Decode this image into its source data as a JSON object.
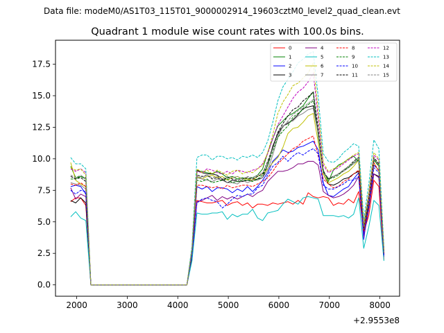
{
  "chart_data": {
    "type": "line",
    "suptitle": "Data file: modeM0/AS1T03_115T01_9000002914_19603cztM0_level2_quad_clean.evt",
    "title": "Quadrant 1 module wise count rates with 100.0s bins.",
    "offset_label": "+2.9553e8",
    "xlabel": "",
    "ylabel": "",
    "xlim": [
      1580,
      8390
    ],
    "ylim": [
      -0.9,
      19.4
    ],
    "xticks": [
      2000,
      3000,
      4000,
      5000,
      6000,
      7000,
      8000
    ],
    "xtick_labels": [
      "2000",
      "3000",
      "4000",
      "5000",
      "6000",
      "7000",
      "8000"
    ],
    "yticks": [
      0,
      2.5,
      5,
      7.5,
      10,
      12.5,
      15,
      17.5
    ],
    "ytick_labels": [
      "0.0",
      "2.5",
      "5.0",
      "7.5",
      "10.0",
      "12.5",
      "15.0",
      "17.5"
    ],
    "legend_position": "top-right",
    "x": [
      1880,
      1980,
      2080,
      2180,
      2280,
      4180,
      4280,
      4380,
      4480,
      4580,
      4680,
      4780,
      4880,
      4980,
      5080,
      5180,
      5280,
      5380,
      5480,
      5580,
      5680,
      5780,
      5880,
      5980,
      6080,
      6180,
      6280,
      6380,
      6480,
      6580,
      6680,
      6780,
      6880,
      6980,
      7080,
      7180,
      7280,
      7380,
      7480,
      7580,
      7680,
      7780,
      7880,
      7980,
      8080
    ],
    "series": [
      {
        "name": "0",
        "color": "#ff0000",
        "dash": "solid",
        "values": [
          6.6,
          6.9,
          6.9,
          6.3,
          0,
          0,
          2.0,
          6.7,
          6.6,
          6.5,
          6.5,
          6.6,
          6.7,
          6.3,
          6.5,
          6.6,
          6.3,
          6.5,
          6.1,
          6.4,
          6.4,
          6.3,
          6.5,
          6.4,
          6.5,
          6.6,
          6.4,
          6.7,
          6.4,
          7.3,
          7.0,
          6.9,
          7.0,
          6.9,
          6.3,
          6.5,
          6.4,
          6.8,
          6.5,
          7.4,
          4.2,
          5.5,
          8.3,
          7.8,
          2.0
        ]
      },
      {
        "name": "1",
        "color": "#008000",
        "dash": "solid",
        "values": [
          9.4,
          8.5,
          8.6,
          8.4,
          0,
          0,
          2.8,
          9.0,
          9.0,
          8.9,
          8.8,
          9.0,
          8.8,
          8.5,
          8.6,
          8.4,
          8.5,
          8.4,
          8.5,
          8.7,
          9.2,
          10.5,
          11.6,
          12.6,
          13.0,
          13.4,
          13.6,
          13.9,
          14.2,
          14.8,
          15.3,
          11.8,
          9.1,
          8.2,
          9.1,
          9.5,
          9.7,
          10.0,
          10.2,
          9.8,
          4.5,
          6.7,
          10.0,
          9.5,
          2.5
        ]
      },
      {
        "name": "2",
        "color": "#0000ff",
        "dash": "solid",
        "values": [
          7.8,
          7.9,
          7.8,
          7.2,
          0,
          0,
          2.4,
          7.8,
          7.6,
          7.8,
          7.4,
          7.7,
          7.7,
          7.6,
          7.3,
          7.6,
          7.4,
          7.8,
          7.4,
          7.8,
          8.3,
          8.9,
          9.8,
          10.2,
          10.7,
          10.5,
          10.6,
          10.9,
          11.0,
          11.2,
          11.4,
          10.7,
          8.1,
          7.1,
          7.0,
          7.3,
          7.6,
          7.8,
          8.4,
          8.9,
          3.6,
          6.6,
          9.5,
          9.1,
          2.4
        ]
      },
      {
        "name": "3",
        "color": "#000000",
        "dash": "solid",
        "values": [
          6.7,
          6.5,
          6.9,
          6.5,
          0,
          0,
          2.1,
          9.1,
          8.9,
          8.8,
          8.8,
          8.7,
          8.4,
          8.1,
          8.3,
          8.2,
          8.2,
          8.3,
          8.3,
          8.4,
          8.5,
          9.5,
          11.0,
          12.0,
          12.6,
          12.8,
          13.1,
          13.5,
          14.0,
          14.1,
          14.2,
          12.1,
          8.8,
          8.0,
          7.9,
          8.1,
          8.4,
          8.5,
          8.8,
          9.0,
          4.3,
          6.5,
          8.8,
          8.6,
          2.4
        ]
      },
      {
        "name": "4",
        "color": "#800080",
        "dash": "solid",
        "values": [
          7.7,
          6.8,
          7.2,
          7.0,
          0,
          0,
          2.3,
          6.6,
          6.7,
          6.9,
          7.1,
          6.7,
          7.0,
          6.8,
          7.0,
          6.8,
          7.0,
          7.2,
          7.0,
          7.3,
          7.5,
          8.2,
          8.6,
          9.0,
          9.0,
          9.1,
          9.3,
          9.6,
          9.6,
          9.8,
          9.8,
          9.5,
          7.4,
          7.1,
          6.9,
          7.0,
          7.2,
          7.5,
          7.9,
          8.6,
          3.8,
          6.0,
          8.8,
          8.5,
          2.2
        ]
      },
      {
        "name": "5",
        "color": "#00bfbf",
        "dash": "solid",
        "values": [
          5.4,
          5.8,
          5.3,
          5.1,
          0,
          0,
          1.9,
          5.7,
          5.6,
          5.6,
          5.7,
          5.7,
          5.8,
          5.2,
          5.6,
          5.4,
          5.6,
          5.6,
          6.0,
          5.3,
          5.1,
          5.7,
          5.8,
          5.9,
          6.4,
          6.8,
          6.6,
          6.4,
          6.9,
          7.0,
          6.9,
          6.8,
          5.5,
          5.5,
          5.5,
          5.4,
          5.5,
          5.3,
          5.6,
          6.9,
          2.9,
          4.6,
          6.7,
          6.3,
          1.9
        ]
      },
      {
        "name": "6",
        "color": "#bfbf00",
        "dash": "solid",
        "values": [
          9.7,
          8.3,
          8.0,
          7.8,
          0,
          0,
          2.6,
          8.6,
          8.4,
          8.6,
          8.7,
          8.5,
          8.6,
          8.3,
          8.5,
          8.6,
          8.4,
          8.4,
          8.3,
          8.6,
          8.8,
          9.2,
          9.7,
          10.1,
          10.9,
          12.0,
          12.4,
          12.5,
          12.9,
          13.4,
          13.6,
          11.3,
          8.8,
          8.1,
          8.3,
          8.5,
          8.8,
          9.0,
          9.4,
          9.9,
          4.4,
          6.8,
          9.7,
          9.0,
          2.7
        ]
      },
      {
        "name": "7",
        "color": "#808080",
        "dash": "solid",
        "values": [
          8.1,
          8.0,
          7.9,
          7.6,
          0,
          0,
          2.5,
          8.5,
          8.4,
          8.3,
          8.2,
          8.4,
          8.3,
          8.1,
          8.1,
          8.0,
          8.3,
          8.1,
          8.3,
          8.3,
          8.5,
          9.1,
          10.3,
          11.7,
          12.6,
          12.9,
          13.0,
          13.4,
          13.6,
          13.9,
          14.0,
          12.0,
          8.9,
          8.4,
          8.6,
          8.8,
          9.0,
          9.3,
          9.6,
          9.9,
          4.6,
          6.6,
          9.9,
          9.4,
          2.6
        ]
      },
      {
        "name": "8",
        "color": "#ff0000",
        "dash": "dashed",
        "values": [
          8.0,
          7.9,
          8.1,
          7.8,
          0,
          0,
          2.6,
          7.9,
          7.9,
          7.8,
          7.7,
          7.8,
          7.6,
          7.9,
          7.7,
          7.8,
          7.9,
          7.9,
          7.8,
          8.0,
          8.2,
          8.5,
          9.0,
          9.6,
          10.0,
          10.4,
          10.8,
          11.0,
          11.4,
          11.6,
          11.8,
          10.2,
          8.4,
          8.0,
          7.7,
          7.8,
          8.2,
          8.4,
          8.8,
          9.1,
          4.3,
          6.2,
          9.7,
          9.0,
          2.4
        ]
      },
      {
        "name": "9",
        "color": "#008000",
        "dash": "dashed",
        "values": [
          8.4,
          8.4,
          8.6,
          8.5,
          0,
          0,
          2.7,
          8.3,
          8.2,
          8.4,
          8.1,
          8.2,
          8.3,
          8.4,
          8.1,
          8.2,
          8.3,
          8.3,
          8.2,
          8.4,
          8.7,
          9.5,
          10.6,
          11.7,
          12.2,
          12.6,
          13.3,
          13.6,
          13.9,
          14.3,
          14.6,
          12.2,
          8.9,
          8.4,
          8.5,
          8.7,
          9.1,
          9.3,
          9.7,
          9.9,
          4.5,
          6.8,
          9.9,
          9.4,
          2.6
        ]
      },
      {
        "name": "10",
        "color": "#0000ff",
        "dash": "dashed",
        "values": [
          7.5,
          7.2,
          7.5,
          7.4,
          0,
          0,
          2.4,
          6.5,
          6.8,
          6.9,
          6.7,
          6.6,
          6.1,
          6.4,
          6.8,
          7.1,
          7.0,
          7.2,
          7.2,
          7.7,
          7.9,
          8.7,
          9.4,
          9.7,
          10.2,
          9.8,
          10.2,
          10.5,
          10.3,
          10.6,
          10.8,
          10.4,
          7.9,
          7.6,
          7.6,
          7.8,
          8.0,
          8.3,
          8.3,
          8.6,
          3.9,
          6.2,
          9.3,
          8.9,
          2.3
        ]
      },
      {
        "name": "11",
        "color": "#000000",
        "dash": "dashed",
        "values": [
          8.6,
          8.4,
          8.5,
          8.2,
          0,
          0,
          2.7,
          8.7,
          8.6,
          8.7,
          8.4,
          8.5,
          8.3,
          8.5,
          8.4,
          8.3,
          8.4,
          8.5,
          8.4,
          8.6,
          8.8,
          9.8,
          10.9,
          12.1,
          12.8,
          13.4,
          13.9,
          14.1,
          14.6,
          14.9,
          15.3,
          12.4,
          9.0,
          8.4,
          8.6,
          8.8,
          9.1,
          9.4,
          9.8,
          10.1,
          4.6,
          6.9,
          10.1,
          9.6,
          2.7
        ]
      },
      {
        "name": "12",
        "color": "#bf00bf",
        "dash": "dashed",
        "values": [
          9.2,
          9.0,
          9.2,
          8.9,
          0,
          0,
          2.9,
          9.0,
          8.9,
          9.2,
          9.1,
          8.9,
          8.8,
          9.0,
          8.8,
          9.1,
          9.0,
          8.9,
          9.1,
          9.2,
          9.6,
          10.4,
          11.6,
          12.7,
          13.4,
          14.1,
          14.8,
          15.3,
          15.6,
          16.1,
          16.8,
          13.2,
          9.5,
          8.9,
          9.1,
          9.3,
          9.6,
          9.9,
          10.2,
          10.4,
          4.8,
          7.2,
          10.3,
          9.9,
          2.8
        ]
      },
      {
        "name": "13",
        "color": "#00bfbf",
        "dash": "dashed",
        "values": [
          10.1,
          9.6,
          9.6,
          9.2,
          0,
          0,
          3.1,
          10.1,
          10.3,
          10.3,
          9.9,
          10.2,
          10.2,
          10.0,
          10.1,
          9.9,
          10.2,
          10.1,
          10.3,
          10.1,
          10.5,
          11.4,
          12.9,
          14.6,
          15.7,
          16.3,
          16.9,
          17.6,
          17.9,
          18.3,
          18.5,
          14.9,
          10.4,
          9.8,
          9.7,
          10.0,
          10.5,
          10.8,
          11.2,
          11.0,
          5.2,
          8.0,
          11.5,
          10.8,
          3.0
        ]
      },
      {
        "name": "14",
        "color": "#bfbf00",
        "dash": "dashed",
        "values": [
          9.3,
          9.1,
          9.2,
          8.7,
          0,
          0,
          2.8,
          9.2,
          8.9,
          9.1,
          8.8,
          9.1,
          8.9,
          8.7,
          9.0,
          9.1,
          8.8,
          9.0,
          8.9,
          9.2,
          9.5,
          10.5,
          11.9,
          13.6,
          14.5,
          15.1,
          15.8,
          16.0,
          16.4,
          16.8,
          17.6,
          13.8,
          9.7,
          9.0,
          9.2,
          9.4,
          9.7,
          10.0,
          10.3,
          10.5,
          4.8,
          7.4,
          10.5,
          10.0,
          2.8
        ]
      },
      {
        "name": "15",
        "color": "#808080",
        "dash": "dashed",
        "values": [
          8.7,
          8.5,
          8.7,
          8.4,
          0,
          0,
          2.7,
          8.6,
          8.5,
          8.7,
          8.5,
          8.6,
          8.4,
          8.6,
          8.5,
          8.6,
          8.4,
          8.6,
          8.5,
          8.7,
          8.9,
          9.7,
          10.8,
          11.9,
          12.5,
          13.0,
          13.5,
          13.8,
          14.1,
          14.4,
          14.7,
          12.3,
          8.9,
          8.5,
          8.6,
          8.8,
          9.1,
          9.4,
          9.7,
          10.0,
          4.6,
          6.9,
          10.0,
          9.5,
          2.6
        ]
      }
    ]
  }
}
